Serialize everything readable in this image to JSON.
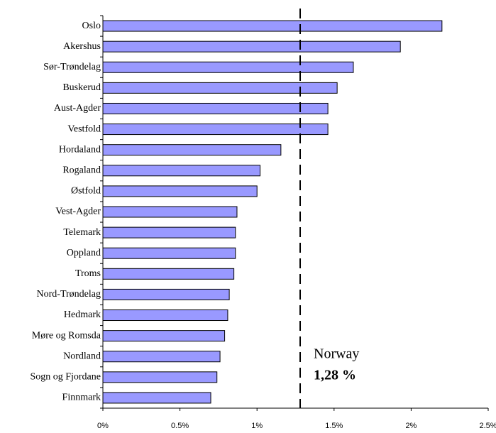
{
  "chart_data": {
    "type": "barh",
    "categories": [
      "Oslo",
      "Akershus",
      "Sør-Trøndelag",
      "Buskerud",
      "Aust-Agder",
      "Vestfold",
      "Hordaland",
      "Rogaland",
      "Østfold",
      "Vest-Agder",
      "Telemark",
      "Oppland",
      "Troms",
      "Nord-Trøndelag",
      "Hedmark",
      "Møre og Romsda",
      "Nordland",
      "Sogn og Fjordane",
      "Finnmark"
    ],
    "values": [
      2.2,
      1.93,
      1.625,
      1.52,
      1.46,
      1.46,
      1.155,
      1.02,
      1.0,
      0.87,
      0.86,
      0.86,
      0.85,
      0.82,
      0.81,
      0.79,
      0.76,
      0.74,
      0.7
    ],
    "color": "#9999ff",
    "xlim": [
      0,
      2.5
    ],
    "xticks": [
      {
        "value": 0,
        "label": "0%"
      },
      {
        "value": 0.5,
        "label": "0.5%"
      },
      {
        "value": 1,
        "label": "1%"
      },
      {
        "value": 1.5,
        "label": "1.5%"
      },
      {
        "value": 2,
        "label": "2%"
      },
      {
        "value": 2.5,
        "label": "2.5%"
      }
    ],
    "reference_line": {
      "value": 1.28,
      "label": "Norway",
      "value_label": "1,28 %"
    }
  }
}
